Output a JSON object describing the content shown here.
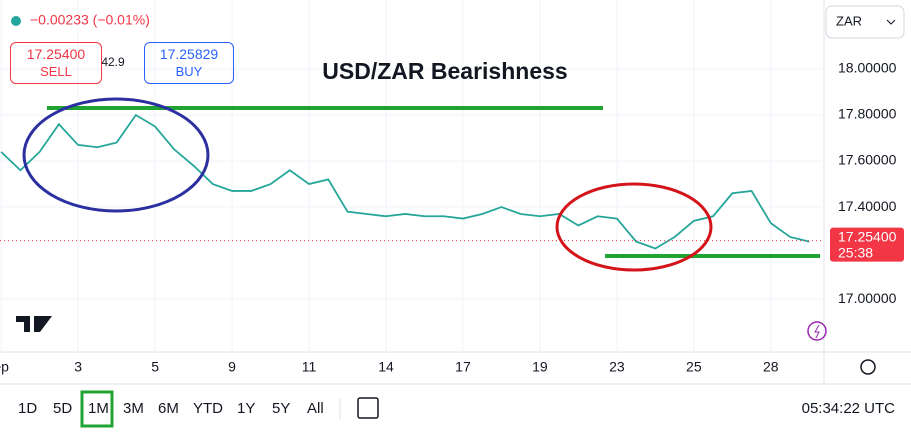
{
  "chart_data": {
    "type": "line",
    "title": "USD/ZAR Bearishness",
    "change": "−0.00233 (−0.01%)",
    "sell_price": "17.25400",
    "sell_label": "SELL",
    "spread": "42.9",
    "buy_price": "17.25829",
    "buy_label": "BUY",
    "currency": "ZAR",
    "last_price": {
      "value": 17.254,
      "label": "17.25400"
    },
    "countdown": "25:38",
    "timeframes": [
      "1D",
      "5D",
      "1M",
      "3M",
      "6M",
      "YTD",
      "1Y",
      "5Y",
      "All"
    ],
    "active_timeframe": "1M",
    "clock": "05:34:22 UTC",
    "series": [
      {
        "color": "#26a69a",
        "x": [
          -2,
          -1.5,
          -1,
          -0.5,
          0,
          0.5,
          1,
          1.5,
          2,
          2.5,
          3,
          3.5,
          4,
          4.5,
          5,
          5.5,
          6,
          6.5,
          7,
          7.5,
          8,
          8.5,
          9,
          9.5,
          10,
          10.5,
          11,
          11.5,
          12,
          12.5,
          13,
          13.5,
          14,
          14.5,
          15,
          15.5,
          16,
          16.5,
          17,
          17.5,
          18,
          18.5,
          19
        ],
        "values": [
          17.64,
          17.56,
          17.64,
          17.76,
          17.67,
          17.66,
          17.68,
          17.8,
          17.75,
          17.65,
          17.58,
          17.5,
          17.47,
          17.47,
          17.5,
          17.56,
          17.5,
          17.52,
          17.38,
          17.37,
          17.36,
          17.37,
          17.36,
          17.36,
          17.35,
          17.37,
          17.4,
          17.37,
          17.36,
          17.37,
          17.32,
          17.36,
          17.35,
          17.25,
          17.22,
          17.27,
          17.34,
          17.36,
          17.46,
          17.47,
          17.33,
          17.27,
          17.25
        ]
      }
    ],
    "xlim": [
      -2.03,
      19.33
    ],
    "xticks": [
      {
        "value": -2,
        "label": "ep"
      },
      {
        "value": 0,
        "label": "3"
      },
      {
        "value": 2,
        "label": "5"
      },
      {
        "value": 4,
        "label": "9"
      },
      {
        "value": 6,
        "label": "11"
      },
      {
        "value": 8,
        "label": "14"
      },
      {
        "value": 10,
        "label": "17"
      },
      {
        "value": 12,
        "label": "19"
      },
      {
        "value": 14,
        "label": "23"
      },
      {
        "value": 16,
        "label": "25"
      },
      {
        "value": 18,
        "label": "28"
      }
    ],
    "ylim": [
      16.77,
      18.3
    ],
    "yticks": [
      {
        "value": 17,
        "label": "17.00000"
      },
      {
        "value": 17.4,
        "label": "17.40000"
      },
      {
        "value": 17.6,
        "label": "17.60000"
      },
      {
        "value": 17.8,
        "label": "17.80000"
      },
      {
        "value": 18,
        "label": "18.00000"
      }
    ]
  }
}
